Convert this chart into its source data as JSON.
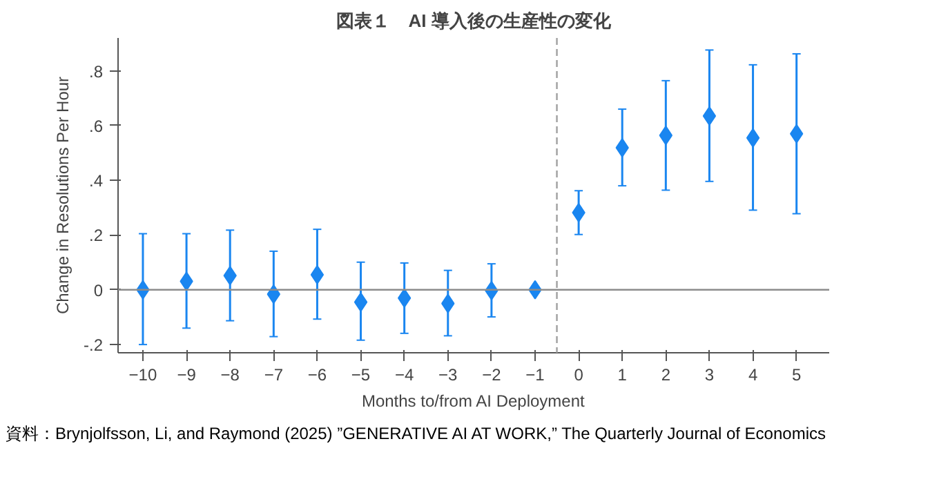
{
  "chart_data": {
    "type": "scatter",
    "title": "図表１　AI 導入後の生産性の変化",
    "xlabel": "Months to/from AI Deployment",
    "ylabel": "Change in Resolutions Per Hour",
    "x": [
      -10,
      -9,
      -8,
      -7,
      -6,
      -5,
      -4,
      -3,
      -2,
      -1,
      0,
      1,
      2,
      3,
      4,
      5
    ],
    "series": [
      {
        "color": "#1a86f0",
        "values": [
          0,
          0.031,
          0.052,
          -0.016,
          0.055,
          -0.045,
          -0.03,
          -0.05,
          -0.003,
          0,
          0.282,
          0.519,
          0.564,
          0.635,
          0.555,
          0.57
        ],
        "errors": [
          [
            -0.2,
            0.205
          ],
          [
            -0.14,
            0.205
          ],
          [
            -0.113,
            0.218
          ],
          [
            -0.171,
            0.141
          ],
          [
            -0.107,
            0.221
          ],
          [
            -0.184,
            0.101
          ],
          [
            -0.159,
            0.098
          ],
          [
            -0.168,
            0.071
          ],
          [
            -0.099,
            0.095
          ],
          null,
          [
            0.202,
            0.362
          ],
          [
            0.38,
            0.66
          ],
          [
            0.364,
            0.764
          ],
          [
            0.396,
            0.876
          ],
          [
            0.291,
            0.822
          ],
          [
            0.278,
            0.862
          ]
        ]
      }
    ],
    "marker": "diamond",
    "grid": false,
    "xlim": [
      -10.57,
      5.75
    ],
    "ylim": [
      -0.23,
      0.92
    ],
    "xticks": [
      -10,
      -9,
      -8,
      -7,
      -6,
      -5,
      -4,
      -3,
      -2,
      -1,
      0,
      1,
      2,
      3,
      4,
      5
    ],
    "yticks": [
      {
        "value": -0.2,
        "label": "-.2"
      },
      0,
      {
        "value": 0.2,
        "label": ".2"
      },
      {
        "value": 0.4,
        "label": ".4"
      },
      {
        "value": 0.6,
        "label": ".6"
      },
      {
        "value": 0.8,
        "label": ".8"
      }
    ],
    "ref_lines": [
      {
        "axis": "y",
        "value": 0,
        "color": "#8c8c8c",
        "line_style": "solid"
      },
      {
        "axis": "x",
        "value": -0.5,
        "color": "#a0a0a0",
        "line_style": "dashed"
      }
    ],
    "annotations": [
      "資料：Brynjolfsson, Li, and Raymond (2025) ”GENERATIVE AI AT WORK,” The Quarterly Journal of Economics"
    ]
  }
}
